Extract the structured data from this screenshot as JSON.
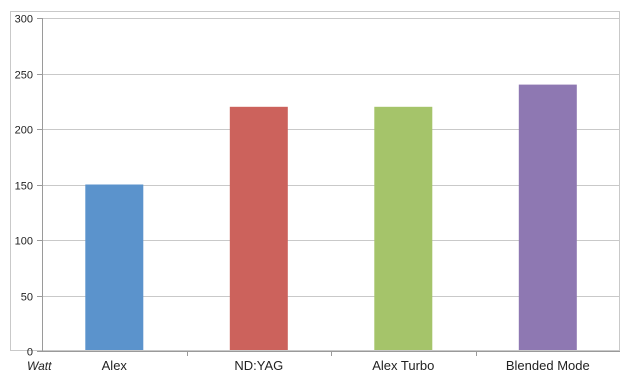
{
  "chart_data": {
    "type": "bar",
    "categories": [
      "Alex",
      "ND:YAG",
      "Alex Turbo",
      "Blended Mode"
    ],
    "values": [
      150,
      220,
      220,
      240
    ],
    "colors": [
      "#5b93cc",
      "#cc625c",
      "#a5c46a",
      "#8e78b2"
    ],
    "title": "",
    "xlabel": "",
    "ylabel": "",
    "x_unit_label": "Watt",
    "ylim": [
      0,
      300
    ],
    "yticks": [
      0,
      50,
      100,
      150,
      200,
      250,
      300
    ],
    "grid": true,
    "legend": "none"
  }
}
